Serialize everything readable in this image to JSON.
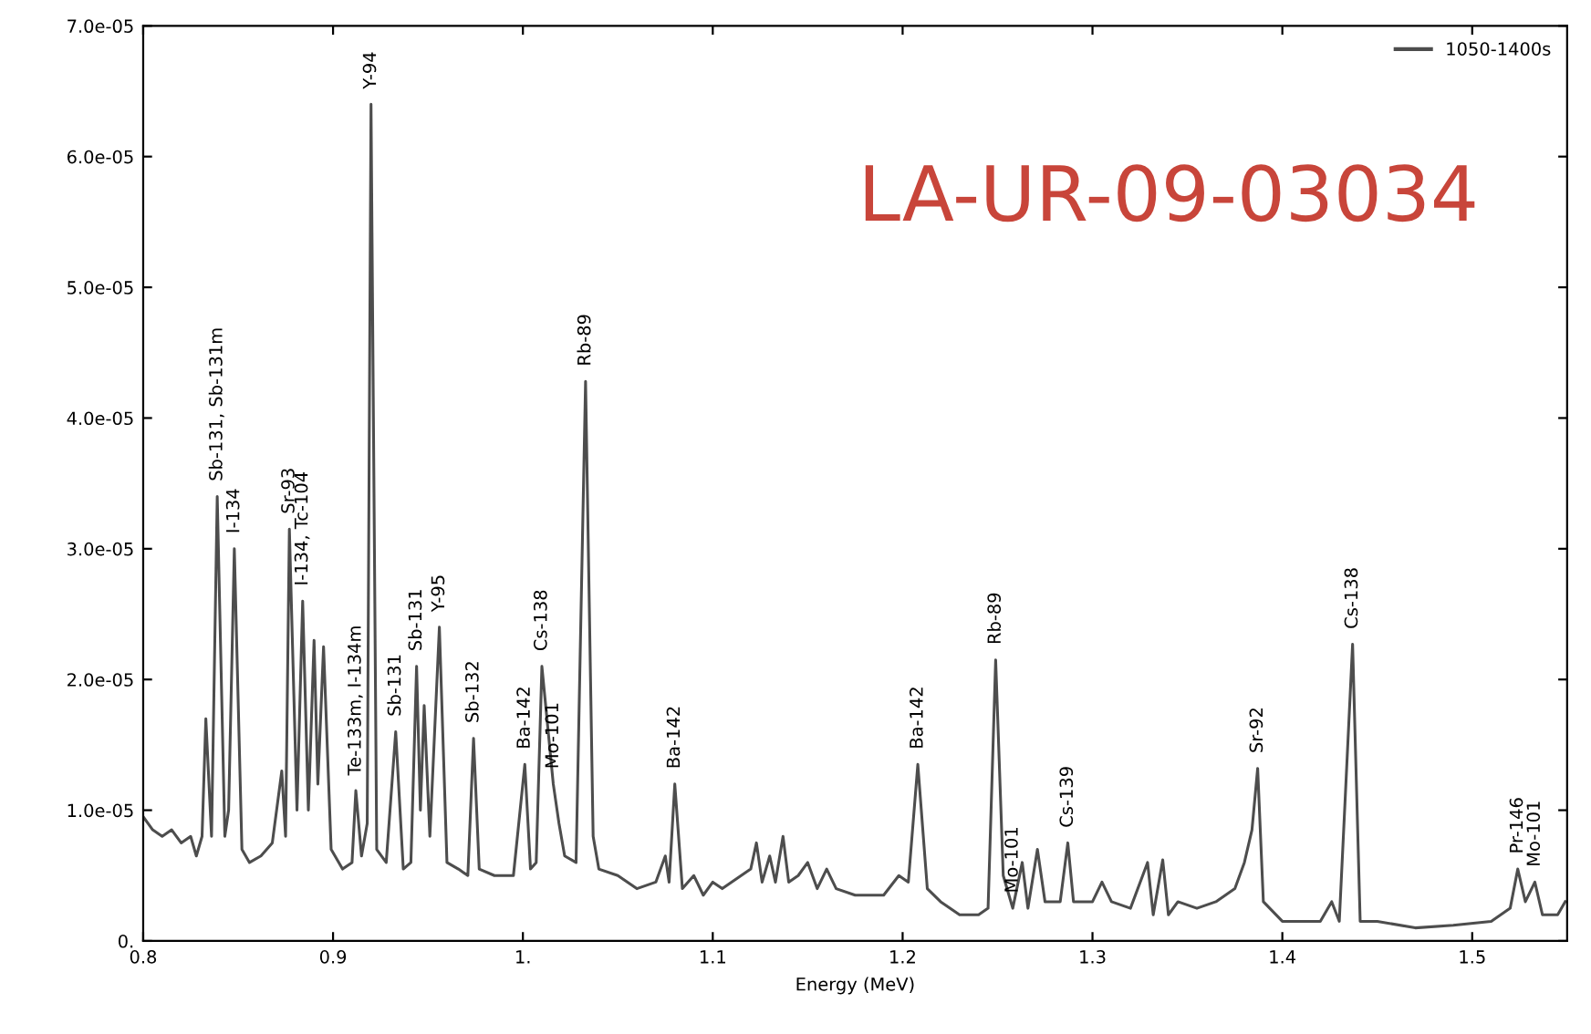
{
  "chart_data": {
    "type": "line",
    "xlabel": "Energy (MeV)",
    "xlim": [
      0.8,
      1.55
    ],
    "xticks": [
      {
        "value": 0.8,
        "label": "0.8"
      },
      {
        "value": 0.9,
        "label": "0.9"
      },
      {
        "value": 1.0,
        "label": "1."
      },
      {
        "value": 1.1,
        "label": "1.1"
      },
      {
        "value": 1.2,
        "label": "1.2"
      },
      {
        "value": 1.3,
        "label": "1.3"
      },
      {
        "value": 1.4,
        "label": "1.4"
      },
      {
        "value": 1.5,
        "label": "1.5"
      }
    ],
    "ylim": [
      0,
      7e-05
    ],
    "yticks": [
      {
        "value": 0,
        "label": "0."
      },
      {
        "value": 1e-05,
        "label": "1.0e-05"
      },
      {
        "value": 2e-05,
        "label": "2.0e-05"
      },
      {
        "value": 3e-05,
        "label": "3.0e-05"
      },
      {
        "value": 4e-05,
        "label": "4.0e-05"
      },
      {
        "value": 5e-05,
        "label": "5.0e-05"
      },
      {
        "value": 6e-05,
        "label": "6.0e-05"
      },
      {
        "value": 7e-05,
        "label": "7.0e-05"
      }
    ],
    "grid": false,
    "legend": "top right",
    "line_style": "solid",
    "marker": "none",
    "x": [
      0.8,
      0.805,
      0.81,
      0.815,
      0.82,
      0.825,
      0.828,
      0.831,
      0.833,
      0.836,
      0.839,
      0.843,
      0.845,
      0.848,
      0.852,
      0.856,
      0.862,
      0.868,
      0.873,
      0.875,
      0.877,
      0.881,
      0.884,
      0.887,
      0.89,
      0.892,
      0.895,
      0.899,
      0.905,
      0.91,
      0.912,
      0.915,
      0.918,
      0.92,
      0.923,
      0.928,
      0.933,
      0.937,
      0.941,
      0.944,
      0.946,
      0.948,
      0.951,
      0.956,
      0.96,
      0.966,
      0.971,
      0.974,
      0.977,
      0.985,
      0.995,
      1.001,
      1.004,
      1.007,
      1.01,
      1.016,
      1.019,
      1.022,
      1.028,
      1.033,
      1.037,
      1.04,
      1.05,
      1.06,
      1.07,
      1.075,
      1.077,
      1.08,
      1.084,
      1.09,
      1.095,
      1.1,
      1.105,
      1.12,
      1.123,
      1.126,
      1.13,
      1.133,
      1.137,
      1.14,
      1.145,
      1.15,
      1.155,
      1.16,
      1.165,
      1.175,
      1.19,
      1.198,
      1.203,
      1.208,
      1.213,
      1.22,
      1.23,
      1.24,
      1.245,
      1.249,
      1.253,
      1.258,
      1.263,
      1.266,
      1.271,
      1.275,
      1.283,
      1.287,
      1.29,
      1.3,
      1.305,
      1.31,
      1.32,
      1.329,
      1.332,
      1.337,
      1.34,
      1.345,
      1.355,
      1.365,
      1.375,
      1.38,
      1.384,
      1.387,
      1.39,
      1.4,
      1.41,
      1.42,
      1.426,
      1.43,
      1.437,
      1.441,
      1.45,
      1.47,
      1.49,
      1.51,
      1.52,
      1.524,
      1.528,
      1.533,
      1.537,
      1.545,
      1.549
    ],
    "series": [
      {
        "name": "1050-1400s",
        "color": "#4d4d4d",
        "values": [
          9.5e-06,
          8.5e-06,
          8e-06,
          8.5e-06,
          7.5e-06,
          8e-06,
          6.5e-06,
          8e-06,
          1.7e-05,
          8e-06,
          3.4e-05,
          8e-06,
          1e-05,
          3e-05,
          7e-06,
          6e-06,
          6.5e-06,
          7.5e-06,
          1.3e-05,
          8e-06,
          3.15e-05,
          1e-05,
          2.6e-05,
          1e-05,
          2.3e-05,
          1.2e-05,
          2.25e-05,
          7e-06,
          5.5e-06,
          6e-06,
          1.15e-05,
          6.5e-06,
          9e-06,
          6.4e-05,
          7e-06,
          6e-06,
          1.6e-05,
          5.5e-06,
          6e-06,
          2.1e-05,
          1e-05,
          1.8e-05,
          8e-06,
          2.4e-05,
          6e-06,
          5.5e-06,
          5e-06,
          1.55e-05,
          5.5e-06,
          5e-06,
          5e-06,
          1.35e-05,
          5.5e-06,
          6e-06,
          2.1e-05,
          1.2e-05,
          9e-06,
          6.5e-06,
          6e-06,
          4.28e-05,
          8e-06,
          5.5e-06,
          5e-06,
          4e-06,
          4.5e-06,
          6.5e-06,
          4.5e-06,
          1.2e-05,
          4e-06,
          5e-06,
          3.5e-06,
          4.5e-06,
          4e-06,
          5.5e-06,
          7.5e-06,
          4.5e-06,
          6.5e-06,
          4.5e-06,
          8e-06,
          4.5e-06,
          5e-06,
          6e-06,
          4e-06,
          5.5e-06,
          4e-06,
          3.5e-06,
          3.5e-06,
          5e-06,
          4.5e-06,
          1.35e-05,
          4e-06,
          3e-06,
          2e-06,
          2e-06,
          2.5e-06,
          2.15e-05,
          5e-06,
          2.5e-06,
          6e-06,
          2.5e-06,
          7e-06,
          3e-06,
          3e-06,
          7.5e-06,
          3e-06,
          3e-06,
          4.5e-06,
          3e-06,
          2.5e-06,
          6e-06,
          2e-06,
          6.2e-06,
          2e-06,
          3e-06,
          2.5e-06,
          3e-06,
          4e-06,
          6e-06,
          8.5e-06,
          1.32e-05,
          3e-06,
          1.5e-06,
          1.5e-06,
          1.5e-06,
          3e-06,
          1.5e-06,
          2.27e-05,
          1.5e-06,
          1.5e-06,
          1e-06,
          1.2e-06,
          1.5e-06,
          2.5e-06,
          5.5e-06,
          3e-06,
          4.5e-06,
          2e-06,
          2e-06,
          3e-06
        ]
      }
    ],
    "annotations": [
      "LA-UR-09-03034",
      {
        "text": "Sb-131, Sb-131m",
        "x": 0.839,
        "y": 3.4e-05
      },
      {
        "text": "I-134",
        "x": 0.848,
        "y": 3e-05
      },
      {
        "text": "Sr-93",
        "x": 0.877,
        "y": 3.15e-05
      },
      {
        "text": "I-134, Tc-104",
        "x": 0.884,
        "y": 2.6e-05
      },
      {
        "text": "Te-133m, I-134m",
        "x": 0.912,
        "y": 1.15e-05
      },
      {
        "text": "Y-94",
        "x": 0.92,
        "y": 6.4e-05
      },
      {
        "text": "Sb-131",
        "x": 0.933,
        "y": 1.6e-05
      },
      {
        "text": "Sb-131",
        "x": 0.944,
        "y": 2.1e-05
      },
      {
        "text": "Y-95",
        "x": 0.956,
        "y": 2.4e-05
      },
      {
        "text": "Sb-132",
        "x": 0.974,
        "y": 1.55e-05
      },
      {
        "text": "Ba-142",
        "x": 1.001,
        "y": 1.35e-05
      },
      {
        "text": "Cs-138",
        "x": 1.01,
        "y": 2.1e-05
      },
      {
        "text": "Mo-101",
        "x": 1.016,
        "y": 1.2e-05
      },
      {
        "text": "Rb-89",
        "x": 1.033,
        "y": 4.28e-05
      },
      {
        "text": "Ba-142",
        "x": 1.08,
        "y": 1.2e-05
      },
      {
        "text": "Ba-142",
        "x": 1.208,
        "y": 1.35e-05
      },
      {
        "text": "Rb-89",
        "x": 1.249,
        "y": 2.15e-05
      },
      {
        "text": "Mo-101",
        "x": 1.258,
        "y": 2.5e-06
      },
      {
        "text": "Cs-139",
        "x": 1.287,
        "y": 7.5e-06
      },
      {
        "text": "Sr-92",
        "x": 1.387,
        "y": 1.32e-05
      },
      {
        "text": "Cs-138",
        "x": 1.437,
        "y": 2.27e-05
      },
      {
        "text": "Pr-146",
        "x": 1.524,
        "y": 5.5e-06
      },
      {
        "text": "Mo-101",
        "x": 1.533,
        "y": 4.5e-06
      }
    ]
  }
}
